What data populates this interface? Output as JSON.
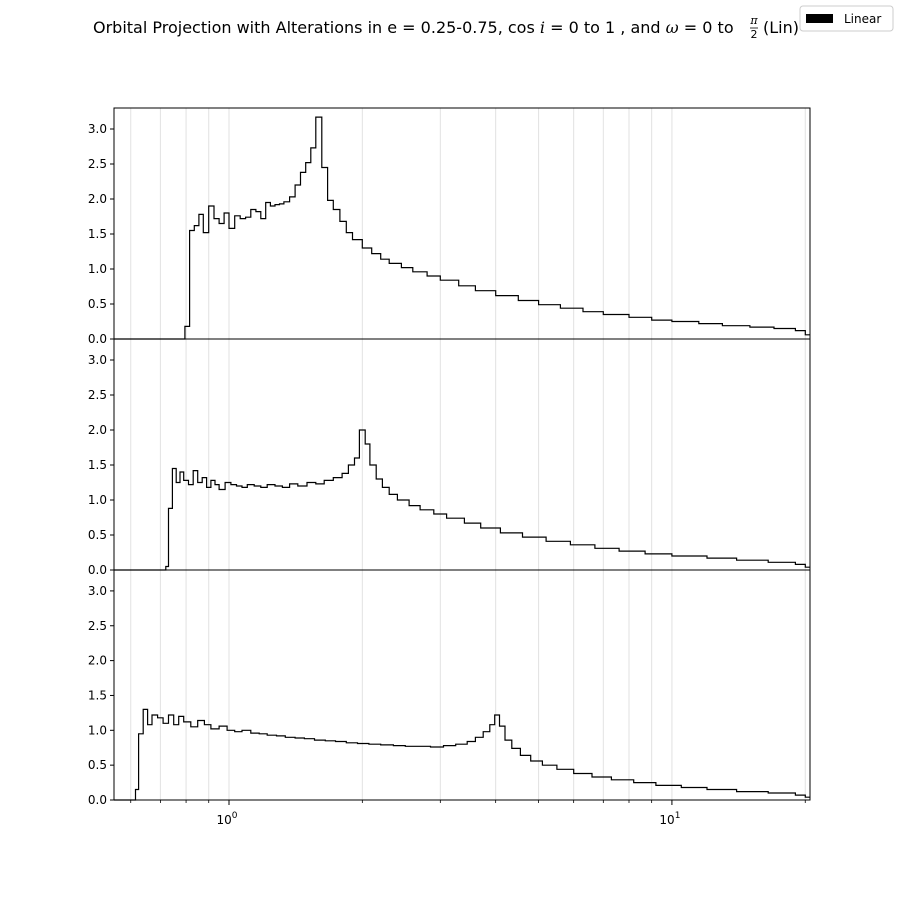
{
  "chart_data": {
    "type": "histogram-step",
    "title": {
      "prefix": "Orbital Projection with Alterations in e = 0.25-0.75, cos",
      "var_i": "i",
      "mid1": "= 0 to 1 , and",
      "var_omega": "ω",
      "mid2": "= 0 to",
      "frac_num": "π",
      "frac_den": "2",
      "suffix": "(Lin)"
    },
    "legend": {
      "entries": [
        {
          "label": "Linear",
          "color": "#000000"
        }
      ],
      "placement": "top-right"
    },
    "x_axis": {
      "scale": "log",
      "range": [
        0.55,
        20.5
      ],
      "major_ticks": [
        {
          "value": 1,
          "base": "10",
          "exp": "0"
        },
        {
          "value": 10,
          "base": "10",
          "exp": "1"
        }
      ],
      "minor_gridlines": [
        0.6,
        0.7,
        0.8,
        0.9,
        2,
        3,
        4,
        5,
        6,
        7,
        8,
        9,
        20
      ]
    },
    "y_axis": {
      "range": [
        0,
        3.3
      ],
      "ticks": [
        {
          "value": 0.0,
          "label": "0.0"
        },
        {
          "value": 0.5,
          "label": "0.5"
        },
        {
          "value": 1.0,
          "label": "1.0"
        },
        {
          "value": 1.5,
          "label": "1.5"
        },
        {
          "value": 2.0,
          "label": "2.0"
        },
        {
          "value": 2.5,
          "label": "2.5"
        },
        {
          "value": 3.0,
          "label": "3.0"
        }
      ]
    },
    "series": [
      {
        "points": [
          [
            0.55,
            0
          ],
          [
            0.77,
            0
          ],
          [
            0.795,
            0.18
          ],
          [
            0.815,
            1.55
          ],
          [
            0.835,
            1.62
          ],
          [
            0.855,
            1.78
          ],
          [
            0.875,
            1.52
          ],
          [
            0.9,
            1.9
          ],
          [
            0.925,
            1.72
          ],
          [
            0.95,
            1.65
          ],
          [
            0.975,
            1.8
          ],
          [
            1.0,
            1.58
          ],
          [
            1.03,
            1.76
          ],
          [
            1.06,
            1.72
          ],
          [
            1.09,
            1.74
          ],
          [
            1.12,
            1.85
          ],
          [
            1.15,
            1.82
          ],
          [
            1.18,
            1.72
          ],
          [
            1.21,
            1.95
          ],
          [
            1.24,
            1.9
          ],
          [
            1.27,
            1.92
          ],
          [
            1.3,
            1.93
          ],
          [
            1.33,
            1.96
          ],
          [
            1.37,
            2.03
          ],
          [
            1.41,
            2.2
          ],
          [
            1.45,
            2.38
          ],
          [
            1.49,
            2.52
          ],
          [
            1.53,
            2.73
          ],
          [
            1.57,
            3.17
          ],
          [
            1.62,
            2.45
          ],
          [
            1.67,
            1.98
          ],
          [
            1.72,
            1.85
          ],
          [
            1.78,
            1.68
          ],
          [
            1.84,
            1.52
          ],
          [
            1.9,
            1.42
          ],
          [
            2.0,
            1.3
          ],
          [
            2.1,
            1.22
          ],
          [
            2.2,
            1.14
          ],
          [
            2.3,
            1.08
          ],
          [
            2.45,
            1.02
          ],
          [
            2.6,
            0.96
          ],
          [
            2.8,
            0.9
          ],
          [
            3.0,
            0.84
          ],
          [
            3.3,
            0.76
          ],
          [
            3.6,
            0.69
          ],
          [
            4.0,
            0.62
          ],
          [
            4.5,
            0.55
          ],
          [
            5.0,
            0.49
          ],
          [
            5.6,
            0.44
          ],
          [
            6.3,
            0.39
          ],
          [
            7.0,
            0.35
          ],
          [
            8.0,
            0.31
          ],
          [
            9.0,
            0.27
          ],
          [
            10.0,
            0.25
          ],
          [
            11.5,
            0.22
          ],
          [
            13.0,
            0.19
          ],
          [
            15.0,
            0.17
          ],
          [
            17.0,
            0.15
          ],
          [
            19.0,
            0.12
          ],
          [
            20.0,
            0.06
          ],
          [
            20.5,
            0
          ]
        ]
      },
      {
        "points": [
          [
            0.55,
            0
          ],
          [
            0.71,
            0
          ],
          [
            0.72,
            0.05
          ],
          [
            0.73,
            0.88
          ],
          [
            0.745,
            1.45
          ],
          [
            0.76,
            1.25
          ],
          [
            0.775,
            1.4
          ],
          [
            0.79,
            1.28
          ],
          [
            0.81,
            1.22
          ],
          [
            0.83,
            1.42
          ],
          [
            0.85,
            1.25
          ],
          [
            0.87,
            1.32
          ],
          [
            0.89,
            1.18
          ],
          [
            0.91,
            1.28
          ],
          [
            0.93,
            1.22
          ],
          [
            0.95,
            1.15
          ],
          [
            0.98,
            1.25
          ],
          [
            1.01,
            1.22
          ],
          [
            1.04,
            1.2
          ],
          [
            1.07,
            1.18
          ],
          [
            1.1,
            1.22
          ],
          [
            1.14,
            1.2
          ],
          [
            1.18,
            1.18
          ],
          [
            1.22,
            1.22
          ],
          [
            1.27,
            1.2
          ],
          [
            1.32,
            1.18
          ],
          [
            1.37,
            1.23
          ],
          [
            1.43,
            1.2
          ],
          [
            1.5,
            1.25
          ],
          [
            1.57,
            1.23
          ],
          [
            1.64,
            1.28
          ],
          [
            1.72,
            1.32
          ],
          [
            1.8,
            1.38
          ],
          [
            1.86,
            1.5
          ],
          [
            1.92,
            1.6
          ],
          [
            1.97,
            2.0
          ],
          [
            2.03,
            1.8
          ],
          [
            2.08,
            1.5
          ],
          [
            2.15,
            1.3
          ],
          [
            2.22,
            1.18
          ],
          [
            2.3,
            1.08
          ],
          [
            2.4,
            1.0
          ],
          [
            2.55,
            0.92
          ],
          [
            2.7,
            0.86
          ],
          [
            2.9,
            0.8
          ],
          [
            3.1,
            0.74
          ],
          [
            3.4,
            0.67
          ],
          [
            3.7,
            0.6
          ],
          [
            4.1,
            0.53
          ],
          [
            4.6,
            0.47
          ],
          [
            5.2,
            0.41
          ],
          [
            5.9,
            0.36
          ],
          [
            6.7,
            0.31
          ],
          [
            7.6,
            0.27
          ],
          [
            8.7,
            0.23
          ],
          [
            10.0,
            0.2
          ],
          [
            12.0,
            0.17
          ],
          [
            14.0,
            0.14
          ],
          [
            16.5,
            0.11
          ],
          [
            19.0,
            0.08
          ],
          [
            20.0,
            0.04
          ],
          [
            20.5,
            0
          ]
        ]
      },
      {
        "points": [
          [
            0.55,
            0
          ],
          [
            0.605,
            0
          ],
          [
            0.615,
            0.15
          ],
          [
            0.625,
            0.95
          ],
          [
            0.64,
            1.3
          ],
          [
            0.655,
            1.08
          ],
          [
            0.67,
            1.22
          ],
          [
            0.69,
            1.18
          ],
          [
            0.71,
            1.1
          ],
          [
            0.73,
            1.22
          ],
          [
            0.75,
            1.08
          ],
          [
            0.77,
            1.2
          ],
          [
            0.79,
            1.12
          ],
          [
            0.82,
            1.05
          ],
          [
            0.85,
            1.14
          ],
          [
            0.88,
            1.08
          ],
          [
            0.91,
            1.02
          ],
          [
            0.95,
            1.06
          ],
          [
            0.99,
            1.0
          ],
          [
            1.03,
            0.98
          ],
          [
            1.07,
            1.0
          ],
          [
            1.12,
            0.96
          ],
          [
            1.17,
            0.95
          ],
          [
            1.22,
            0.93
          ],
          [
            1.28,
            0.92
          ],
          [
            1.34,
            0.9
          ],
          [
            1.41,
            0.89
          ],
          [
            1.48,
            0.88
          ],
          [
            1.56,
            0.86
          ],
          [
            1.65,
            0.85
          ],
          [
            1.74,
            0.84
          ],
          [
            1.84,
            0.82
          ],
          [
            1.95,
            0.81
          ],
          [
            2.07,
            0.8
          ],
          [
            2.2,
            0.79
          ],
          [
            2.35,
            0.78
          ],
          [
            2.5,
            0.77
          ],
          [
            2.65,
            0.77
          ],
          [
            2.85,
            0.76
          ],
          [
            3.05,
            0.78
          ],
          [
            3.25,
            0.8
          ],
          [
            3.45,
            0.84
          ],
          [
            3.6,
            0.9
          ],
          [
            3.75,
            0.98
          ],
          [
            3.88,
            1.08
          ],
          [
            3.98,
            1.22
          ],
          [
            4.08,
            1.06
          ],
          [
            4.2,
            0.86
          ],
          [
            4.35,
            0.74
          ],
          [
            4.55,
            0.64
          ],
          [
            4.8,
            0.56
          ],
          [
            5.1,
            0.5
          ],
          [
            5.5,
            0.44
          ],
          [
            6.0,
            0.38
          ],
          [
            6.6,
            0.33
          ],
          [
            7.3,
            0.29
          ],
          [
            8.2,
            0.25
          ],
          [
            9.2,
            0.21
          ],
          [
            10.5,
            0.18
          ],
          [
            12.0,
            0.15
          ],
          [
            14.0,
            0.12
          ],
          [
            16.5,
            0.1
          ],
          [
            19.0,
            0.07
          ],
          [
            20.0,
            0.04
          ],
          [
            20.5,
            0
          ]
        ]
      }
    ]
  }
}
